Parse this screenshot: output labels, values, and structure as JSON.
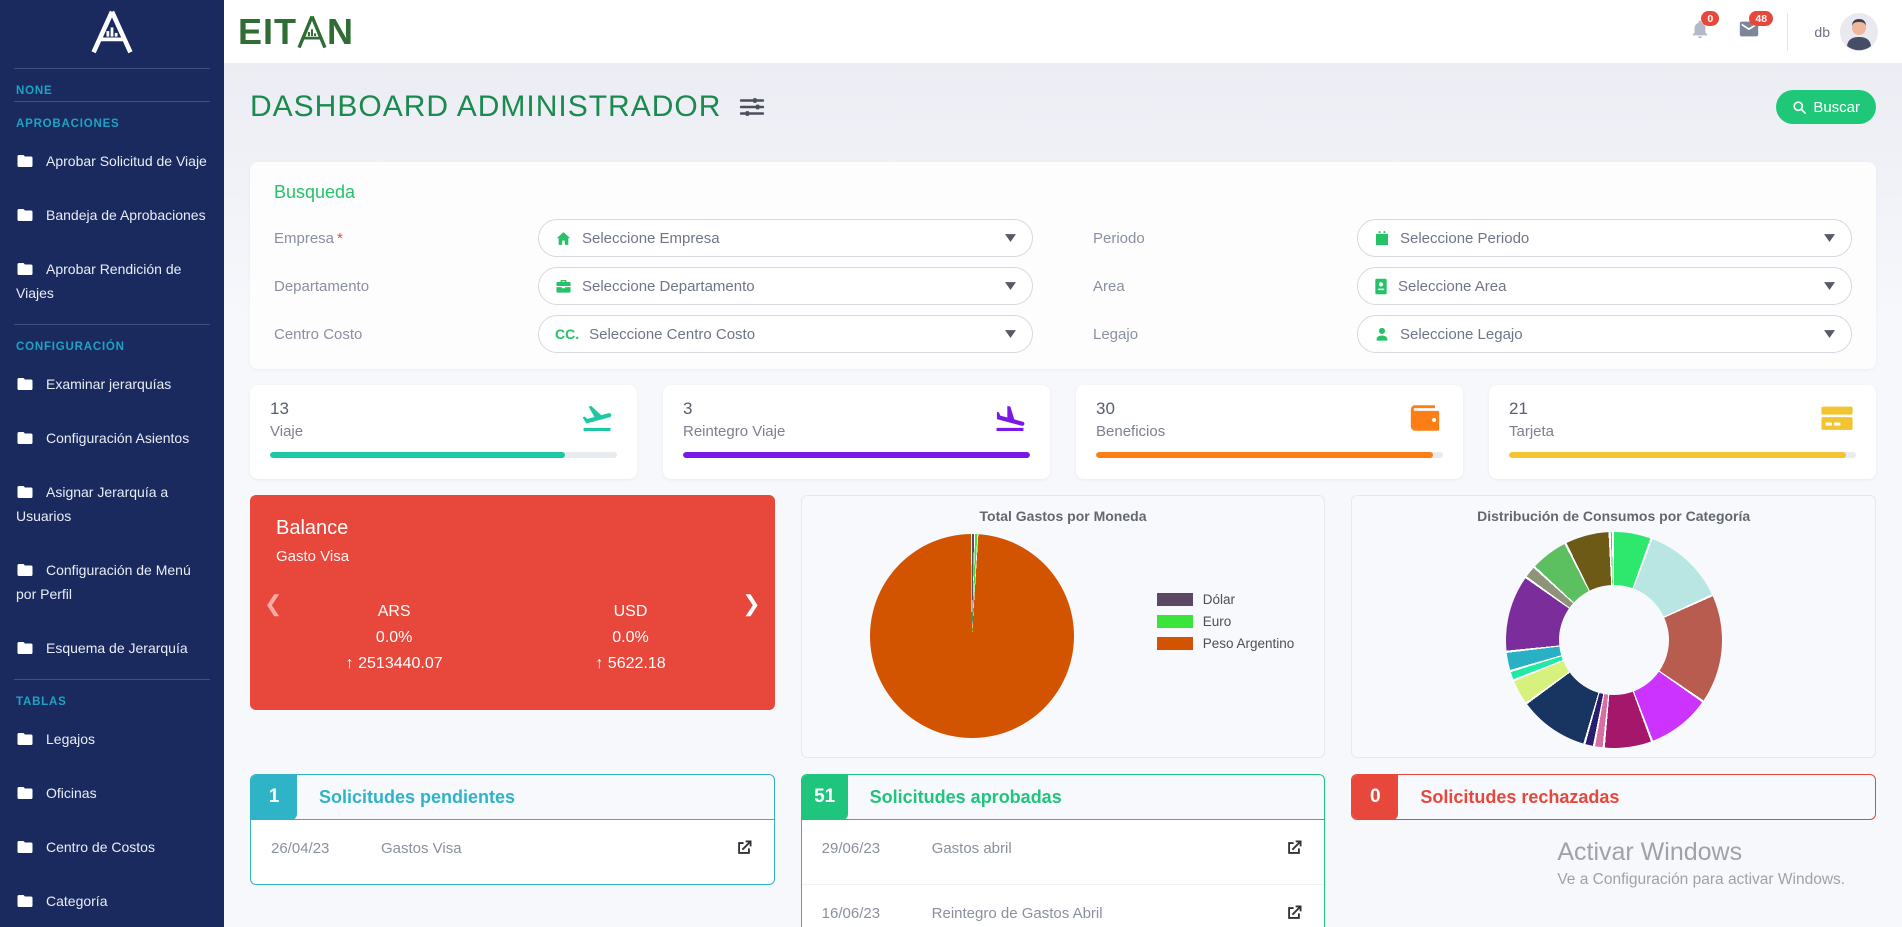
{
  "sidebar": {
    "sections": [
      {
        "label": "NONE",
        "items": []
      },
      {
        "label": "APROBACIONES",
        "items": [
          "Aprobar Solicitud de Viaje",
          "Bandeja de Aprobaciones",
          "Aprobar Rendición de Viajes"
        ]
      },
      {
        "label": "CONFIGURACIÓN",
        "items": [
          "Examinar jerarquías",
          "Configuración Asientos",
          "Asignar Jerarquía a Usuarios",
          "Configuración de Menú por Perfil",
          "Esquema de Jerarquía"
        ]
      },
      {
        "label": "TABLAS",
        "items": [
          "Legajos",
          "Oficinas",
          "Centro de Costos",
          "Categoría"
        ]
      }
    ]
  },
  "topbar": {
    "brand": "EITAN",
    "brand_part1": "EIT",
    "brand_part2": "N",
    "bell_count": "0",
    "mail_count": "48",
    "user": {
      "label": "db"
    }
  },
  "header": {
    "title": "DASHBOARD ADMINISTRADOR",
    "search_button": "Buscar"
  },
  "search": {
    "title": "Busqueda",
    "required_mark": "*",
    "left_fields": [
      {
        "label": "Empresa",
        "placeholder": "Seleccione Empresa",
        "icon": "home-icon"
      },
      {
        "label": "Departamento",
        "placeholder": "Seleccione Departamento",
        "icon": "briefcase-icon"
      },
      {
        "label": "Centro Costo",
        "placeholder": "Seleccione Centro Costo",
        "icon": "cc-text-icon",
        "icon_text": "CC."
      }
    ],
    "right_fields": [
      {
        "label": "Periodo",
        "placeholder": "Seleccione Periodo",
        "icon": "calendar-icon"
      },
      {
        "label": "Area",
        "placeholder": "Seleccione Area",
        "icon": "id-card-icon"
      },
      {
        "label": "Legajo",
        "placeholder": "Seleccione Legajo",
        "icon": "user-icon"
      }
    ]
  },
  "stats": [
    {
      "value": "13",
      "label": "Viaje",
      "icon": "plane-departure-icon",
      "color": "#1ec8a5",
      "progress": 85
    },
    {
      "value": "3",
      "label": "Reintegro Viaje",
      "icon": "plane-arrival-icon",
      "color": "#7a18e8",
      "progress": 100
    },
    {
      "value": "30",
      "label": "Beneficios",
      "icon": "wallet-icon",
      "color": "#fd7e14",
      "progress": 97
    },
    {
      "value": "21",
      "label": "Tarjeta",
      "icon": "credit-card-icon",
      "color": "#f2c431",
      "progress": 97
    }
  ],
  "balance": {
    "title": "Balance",
    "subtitle": "Gasto Visa",
    "color": "#e8473c",
    "entries": [
      {
        "currency": "ARS",
        "percent": "0.0%",
        "amount": "2513440.07"
      },
      {
        "currency": "USD",
        "percent": "0.0%",
        "amount": "5622.18"
      }
    ]
  },
  "chart_data": [
    {
      "type": "pie",
      "title": "Total Gastos por Moneda",
      "labels": [
        "Dólar",
        "Euro",
        "Peso Argentino"
      ],
      "values": [
        0.5,
        0.5,
        99
      ],
      "colors": [
        "#5c4862",
        "#3ae43a",
        "#d35400"
      ],
      "legend_position": "right"
    },
    {
      "type": "pie",
      "subtype": "donut",
      "title": "Distribución de Consumos por Categoría",
      "legend_position": "none",
      "segments": [
        {
          "color": "#2ee86e",
          "value": 6
        },
        {
          "color": "#b9e6e2",
          "value": 13
        },
        {
          "color": "#b85c50",
          "value": 17
        },
        {
          "color": "#cc33ff",
          "value": 10
        },
        {
          "color": "#a4176b",
          "value": 7.5
        },
        {
          "color": "#d76fa2",
          "value": 1.5
        },
        {
          "color": "#2a1d70",
          "value": 1.5
        },
        {
          "color": "#173560",
          "value": 11
        },
        {
          "color": "#d6f27c",
          "value": 4
        },
        {
          "color": "#1fe9a3",
          "value": 1.5
        },
        {
          "color": "#2ab0c4",
          "value": 3
        },
        {
          "color": "#7b2d9b",
          "value": 12
        },
        {
          "color": "#8d9479",
          "value": 2
        },
        {
          "color": "#5cbf60",
          "value": 6
        },
        {
          "color": "#6d5a16",
          "value": 7
        },
        {
          "color": "#3ddc50",
          "value": 0.5
        }
      ]
    }
  ],
  "lists": [
    {
      "count": "1",
      "title": "Solicitudes pendientes",
      "color": "#2fb3c6",
      "rows": [
        {
          "date": "26/04/23",
          "text": "Gastos Visa"
        }
      ]
    },
    {
      "count": "51",
      "title": "Solicitudes aprobadas",
      "color": "#1fc47d",
      "rows": [
        {
          "date": "29/06/23",
          "text": "Gastos abril"
        },
        {
          "date": "16/06/23",
          "text": "Reintegro de Gastos Abril"
        }
      ]
    },
    {
      "count": "0",
      "title": "Solicitudes rechazadas",
      "color": "#e8473c",
      "rows": []
    }
  ],
  "watermark": {
    "line1": "Activar Windows",
    "line2": "Ve a Configuración para activar Windows."
  }
}
